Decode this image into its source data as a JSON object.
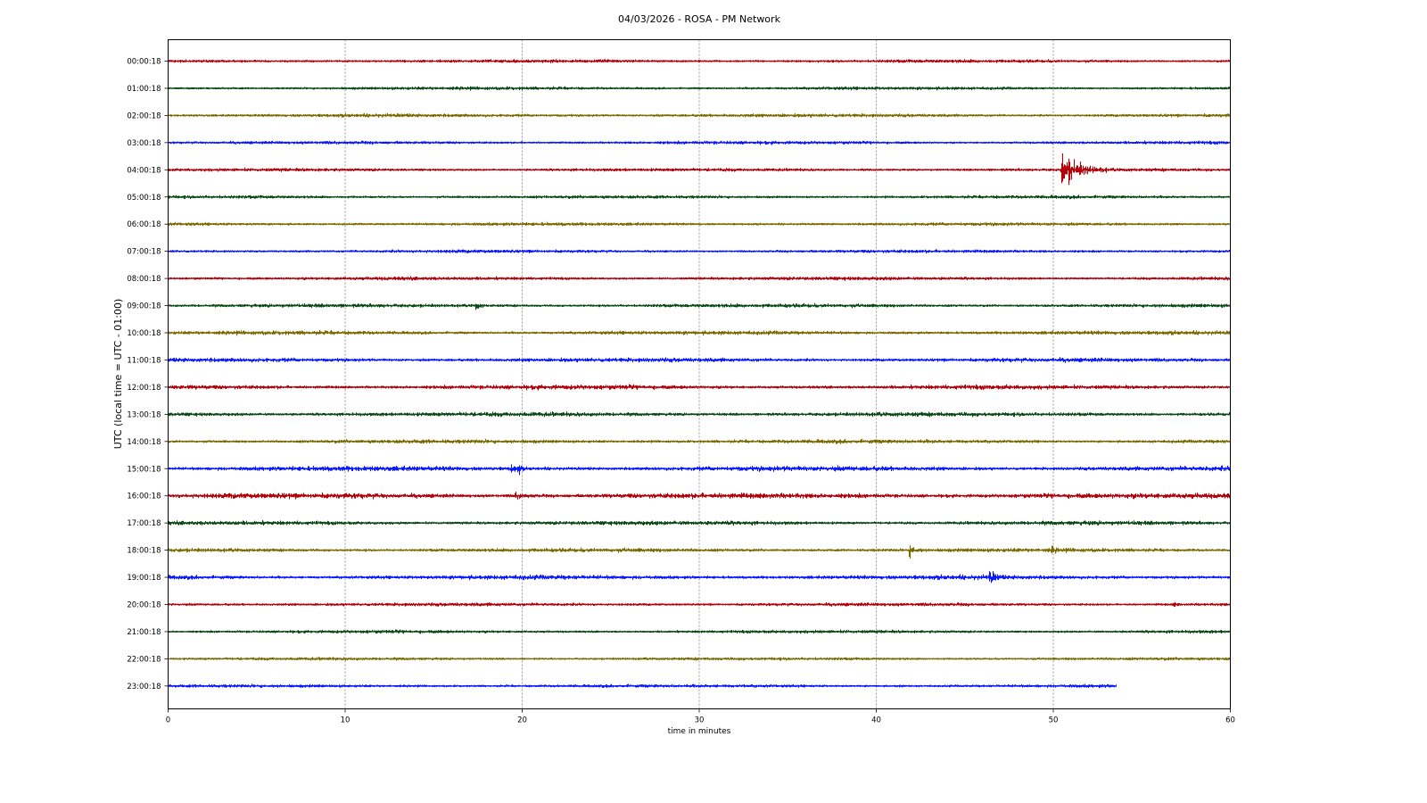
{
  "chart_data": {
    "type": "line",
    "title": "04/03/2026 - ROSA - PM Network",
    "xlabel": "time in minutes",
    "ylabel": "UTC (local time = UTC - 01:00)",
    "xlim": [
      0,
      60
    ],
    "xticks": [
      0,
      10,
      20,
      30,
      40,
      50,
      60
    ],
    "grid": "vertical dashed at x ticks",
    "trace_color_cycle": [
      "#b5000a",
      "#0b4a16",
      "#7a6a00",
      "#0a18ff"
    ],
    "rows": [
      {
        "label": "00:00:18",
        "noise": 1.0,
        "end": 60,
        "events": []
      },
      {
        "label": "01:00:18",
        "noise": 1.0,
        "end": 60,
        "events": []
      },
      {
        "label": "02:00:18",
        "noise": 1.1,
        "end": 60,
        "events": []
      },
      {
        "label": "03:00:18",
        "noise": 1.0,
        "end": 60,
        "events": []
      },
      {
        "label": "04:00:18",
        "noise": 1.0,
        "end": 60,
        "events": [
          {
            "t": 50.5,
            "amp": 20,
            "dur": 2.5
          }
        ]
      },
      {
        "label": "05:00:18",
        "noise": 1.0,
        "end": 60,
        "events": []
      },
      {
        "label": "06:00:18",
        "noise": 1.0,
        "end": 60,
        "events": []
      },
      {
        "label": "07:00:18",
        "noise": 1.0,
        "end": 60,
        "events": []
      },
      {
        "label": "08:00:18",
        "noise": 1.1,
        "end": 60,
        "events": []
      },
      {
        "label": "09:00:18",
        "noise": 1.2,
        "end": 60,
        "events": [
          {
            "t": 17.4,
            "amp": 5,
            "dur": 0.5
          }
        ]
      },
      {
        "label": "10:00:18",
        "noise": 1.3,
        "end": 60,
        "events": []
      },
      {
        "label": "11:00:18",
        "noise": 1.4,
        "end": 60,
        "events": []
      },
      {
        "label": "12:00:18",
        "noise": 1.5,
        "end": 60,
        "events": []
      },
      {
        "label": "13:00:18",
        "noise": 1.5,
        "end": 60,
        "events": []
      },
      {
        "label": "14:00:18",
        "noise": 1.3,
        "end": 60,
        "events": []
      },
      {
        "label": "15:00:18",
        "noise": 1.7,
        "end": 60,
        "events": [
          {
            "t": 19.4,
            "amp": 8,
            "dur": 0.4
          },
          {
            "t": 19.8,
            "amp": 7,
            "dur": 0.3
          }
        ]
      },
      {
        "label": "16:00:18",
        "noise": 1.9,
        "end": 60,
        "events": [
          {
            "t": 19.6,
            "amp": 3,
            "dur": 1.5
          }
        ]
      },
      {
        "label": "17:00:18",
        "noise": 1.4,
        "end": 60,
        "events": []
      },
      {
        "label": "18:00:18",
        "noise": 1.3,
        "end": 60,
        "events": [
          {
            "t": 41.9,
            "amp": 8,
            "dur": 0.8
          },
          {
            "t": 49.9,
            "amp": 3.5,
            "dur": 0.5
          }
        ]
      },
      {
        "label": "19:00:18",
        "noise": 1.5,
        "end": 60,
        "events": [
          {
            "t": 46.4,
            "amp": 7,
            "dur": 0.8
          }
        ]
      },
      {
        "label": "20:00:18",
        "noise": 1.1,
        "end": 60,
        "events": [
          {
            "t": 56.8,
            "amp": 2,
            "dur": 0.5
          }
        ]
      },
      {
        "label": "21:00:18",
        "noise": 1.0,
        "end": 60,
        "events": []
      },
      {
        "label": "22:00:18",
        "noise": 0.9,
        "end": 60,
        "events": []
      },
      {
        "label": "23:00:18",
        "noise": 1.0,
        "end": 53.6,
        "events": [
          {
            "t": 41.2,
            "amp": 1.5,
            "dur": 0.4
          }
        ]
      }
    ]
  }
}
